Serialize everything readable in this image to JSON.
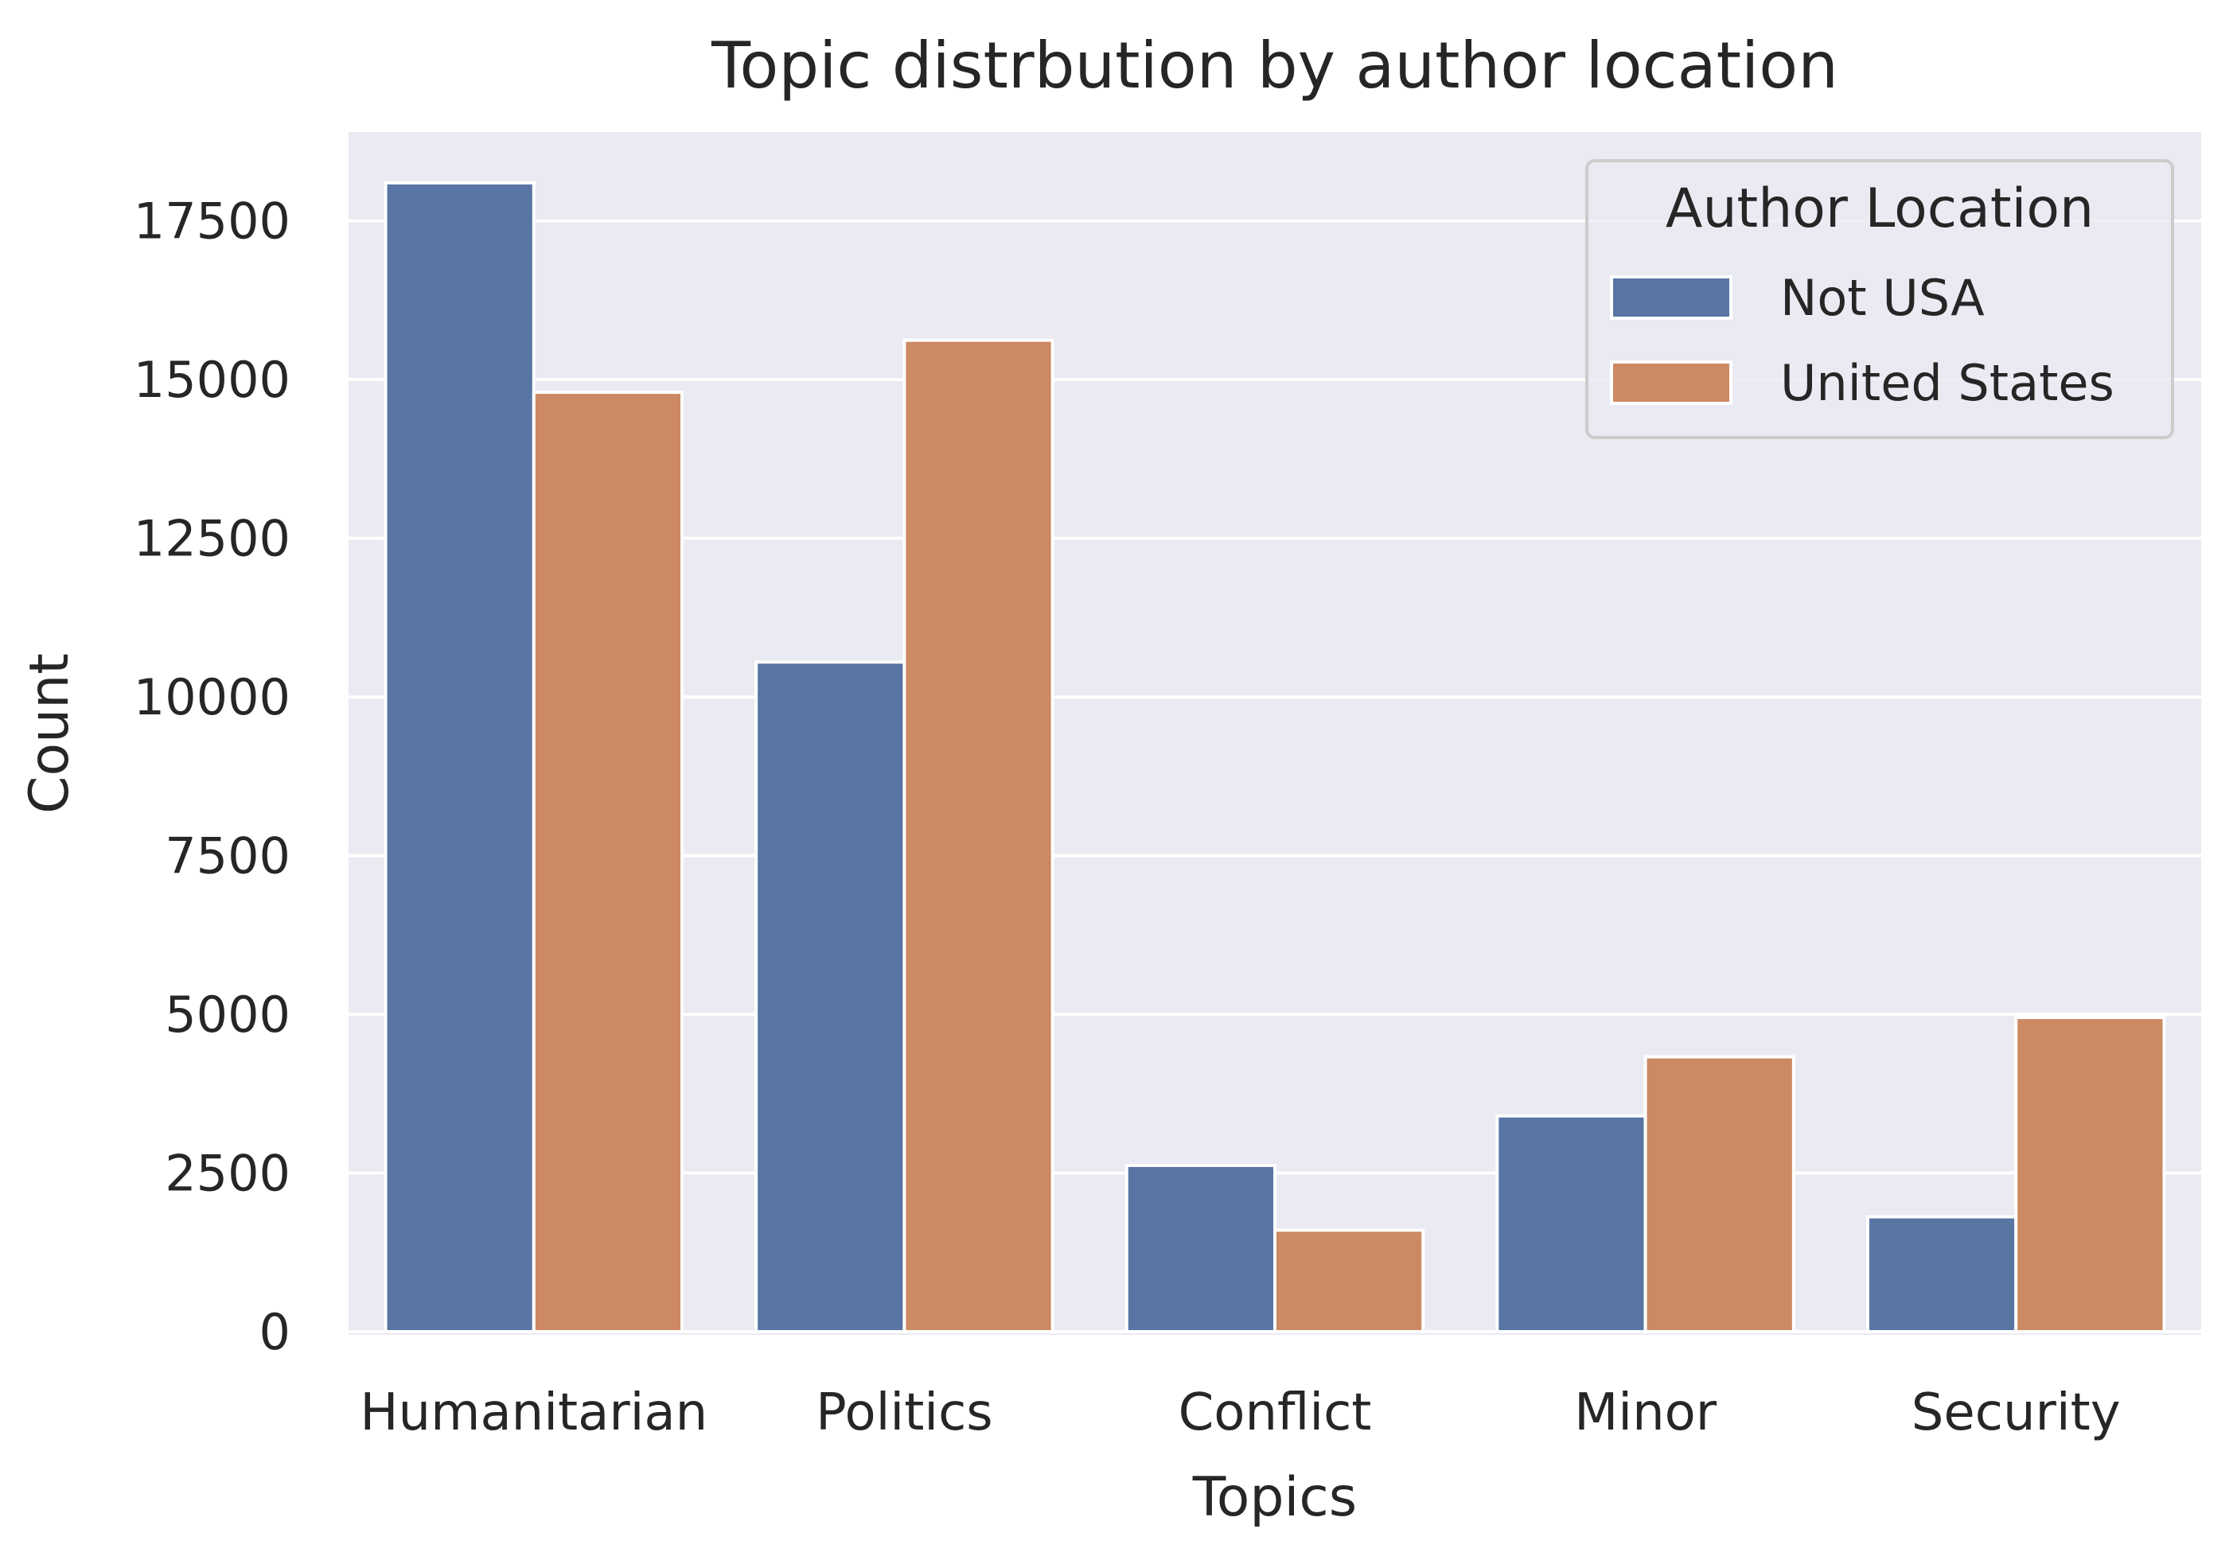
{
  "chart_data": {
    "type": "bar",
    "title": "Topic distrbution by author location",
    "xlabel": "Topics",
    "ylabel": "Count",
    "categories": [
      "Humanitarian",
      "Politics",
      "Conflict",
      "Minor",
      "Security"
    ],
    "series": [
      {
        "name": "Not USA",
        "color": "#5875a4",
        "values": [
          18100,
          10550,
          2620,
          3400,
          1810
        ]
      },
      {
        "name": "United States",
        "color": "#cc8963",
        "values": [
          14800,
          15620,
          1600,
          4330,
          4950
        ]
      }
    ],
    "ylim": [
      0,
      18900
    ],
    "yticks": [
      0,
      2500,
      5000,
      7500,
      10000,
      12500,
      15000,
      17500
    ],
    "ytick_labels": [
      "0",
      "2500",
      "5000",
      "7500",
      "10000",
      "12500",
      "15000",
      "17500"
    ],
    "legend": {
      "title": "Author Location",
      "position": "top-right"
    },
    "grid": true,
    "background": "#eaeaf2"
  }
}
